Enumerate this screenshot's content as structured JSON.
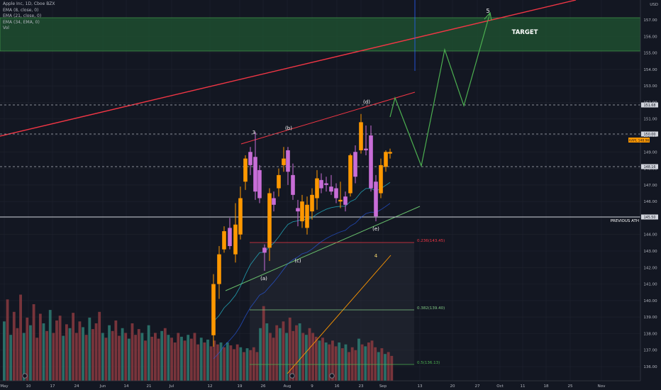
{
  "header": {
    "symbol_line": "Apple Inc, 1D, Cboe BZX",
    "indicators": [
      "EMA (8, close, 0)",
      "EMA (21, close, 0)",
      "EMA (34, EMA, 0)",
      "Vol"
    ]
  },
  "chart_data": {
    "type": "candlestick",
    "price_unit": "USD",
    "y_ticks": [
      157,
      156,
      155,
      154,
      153,
      152,
      151,
      150,
      149,
      148,
      147,
      146,
      145,
      144,
      143,
      142,
      141,
      140,
      139,
      138,
      137,
      136
    ],
    "x_ticks": [
      "May",
      "10",
      "17",
      "24",
      "Jun",
      "14",
      "21",
      "Jul",
      "12",
      "19",
      "26",
      "Aug",
      "9",
      "16",
      "23",
      "Sep",
      "13",
      "20",
      "27",
      "Oct",
      "11",
      "18",
      "25",
      "Nov"
    ],
    "ylim": [
      135.5,
      157.8
    ],
    "last_price_label": "AAPL 148.96",
    "grey_price_tags": [
      "151.68",
      "150.00",
      "148.16",
      "145.50"
    ],
    "candles": [
      {
        "x": 301,
        "o": 137.9,
        "h": 141.6,
        "l": 137.2,
        "c": 141.0,
        "col": "up"
      },
      {
        "x": 309,
        "o": 141.0,
        "h": 143.3,
        "l": 140.1,
        "c": 142.8,
        "col": "up"
      },
      {
        "x": 316,
        "o": 143.1,
        "h": 144.5,
        "l": 142.9,
        "c": 144.2,
        "col": "up"
      },
      {
        "x": 324,
        "o": 144.4,
        "h": 145.0,
        "l": 143.1,
        "c": 143.3,
        "col": "down"
      },
      {
        "x": 332,
        "o": 142.8,
        "h": 145.9,
        "l": 142.3,
        "c": 144.6,
        "col": "up"
      },
      {
        "x": 339,
        "o": 144.0,
        "h": 146.9,
        "l": 143.7,
        "c": 146.2,
        "col": "up"
      },
      {
        "x": 346,
        "o": 147.2,
        "h": 148.8,
        "l": 146.7,
        "c": 148.6,
        "col": "up"
      },
      {
        "x": 353,
        "o": 149.0,
        "h": 149.3,
        "l": 147.6,
        "c": 148.2,
        "col": "down"
      },
      {
        "x": 360,
        "o": 148.7,
        "h": 150.2,
        "l": 146.1,
        "c": 146.6,
        "col": "down"
      },
      {
        "x": 366,
        "o": 147.9,
        "h": 148.2,
        "l": 145.9,
        "c": 146.2,
        "col": "down"
      },
      {
        "x": 373,
        "o": 142.9,
        "h": 143.4,
        "l": 141.8,
        "c": 143.2,
        "col": "down"
      },
      {
        "x": 380,
        "o": 143.2,
        "h": 146.8,
        "l": 142.4,
        "c": 146.5,
        "col": "up"
      },
      {
        "x": 386,
        "o": 146.2,
        "h": 146.6,
        "l": 145.4,
        "c": 145.8,
        "col": "down"
      },
      {
        "x": 393,
        "o": 146.8,
        "h": 148.0,
        "l": 146.3,
        "c": 147.6,
        "col": "up"
      },
      {
        "x": 400,
        "o": 148.2,
        "h": 149.3,
        "l": 147.8,
        "c": 148.6,
        "col": "up"
      },
      {
        "x": 406,
        "o": 149.1,
        "h": 149.3,
        "l": 147.0,
        "c": 147.8,
        "col": "down"
      },
      {
        "x": 413,
        "o": 147.6,
        "h": 148.3,
        "l": 146.1,
        "c": 146.4,
        "col": "down"
      },
      {
        "x": 420,
        "o": 145.6,
        "h": 146.1,
        "l": 144.5,
        "c": 145.4,
        "col": "down"
      },
      {
        "x": 426,
        "o": 144.8,
        "h": 146.4,
        "l": 144.4,
        "c": 146.0,
        "col": "up"
      },
      {
        "x": 433,
        "o": 145.8,
        "h": 146.3,
        "l": 144.0,
        "c": 144.4,
        "col": "up"
      },
      {
        "x": 440,
        "o": 145.4,
        "h": 146.8,
        "l": 144.9,
        "c": 146.4,
        "col": "up"
      },
      {
        "x": 447,
        "o": 146.2,
        "h": 147.9,
        "l": 145.5,
        "c": 147.4,
        "col": "up"
      },
      {
        "x": 453,
        "o": 147.3,
        "h": 147.7,
        "l": 146.5,
        "c": 146.8,
        "col": "down"
      },
      {
        "x": 460,
        "o": 147.1,
        "h": 147.5,
        "l": 146.6,
        "c": 147.0,
        "col": "down"
      },
      {
        "x": 467,
        "o": 146.9,
        "h": 147.6,
        "l": 146.4,
        "c": 146.6,
        "col": "down"
      },
      {
        "x": 474,
        "o": 146.8,
        "h": 147.1,
        "l": 145.9,
        "c": 146.2,
        "col": "down"
      },
      {
        "x": 480,
        "o": 146.1,
        "h": 147.2,
        "l": 145.6,
        "c": 146.0,
        "col": "up"
      },
      {
        "x": 487,
        "o": 146.3,
        "h": 146.6,
        "l": 145.4,
        "c": 145.8,
        "col": "down"
      },
      {
        "x": 494,
        "o": 146.5,
        "h": 148.9,
        "l": 146.3,
        "c": 148.8,
        "col": "up"
      },
      {
        "x": 501,
        "o": 149.0,
        "h": 149.4,
        "l": 147.1,
        "c": 147.5,
        "col": "down"
      },
      {
        "x": 509,
        "o": 149.1,
        "h": 151.3,
        "l": 148.9,
        "c": 150.8,
        "col": "up"
      },
      {
        "x": 516,
        "o": 149.2,
        "h": 150.6,
        "l": 148.8,
        "c": 149.1,
        "col": "down"
      },
      {
        "x": 523,
        "o": 150.0,
        "h": 150.6,
        "l": 146.6,
        "c": 146.8,
        "col": "down"
      },
      {
        "x": 530,
        "o": 147.2,
        "h": 147.6,
        "l": 144.8,
        "c": 145.1,
        "col": "down"
      },
      {
        "x": 537,
        "o": 146.5,
        "h": 148.6,
        "l": 146.2,
        "c": 148.2,
        "col": "up"
      },
      {
        "x": 544,
        "o": 148.1,
        "h": 149.1,
        "l": 147.8,
        "c": 149.0,
        "col": "up"
      },
      {
        "x": 550,
        "o": 149.0,
        "h": 149.2,
        "l": 148.6,
        "c": 148.9,
        "col": "up"
      }
    ],
    "fib_levels": [
      {
        "label": "0.236(143.45)",
        "color": "#f23645"
      },
      {
        "label": "0.382(139.40)",
        "color": "#81c784"
      },
      {
        "label": "0.5(136.13)",
        "color": "#4caf50"
      }
    ],
    "annotations": {
      "target": "TARGET",
      "previous_ath": "PREVIOUS ATH",
      "waves": [
        "3",
        "(b)",
        "(d)",
        "(a)",
        "(c)",
        "(e)",
        "4",
        "5"
      ]
    }
  }
}
